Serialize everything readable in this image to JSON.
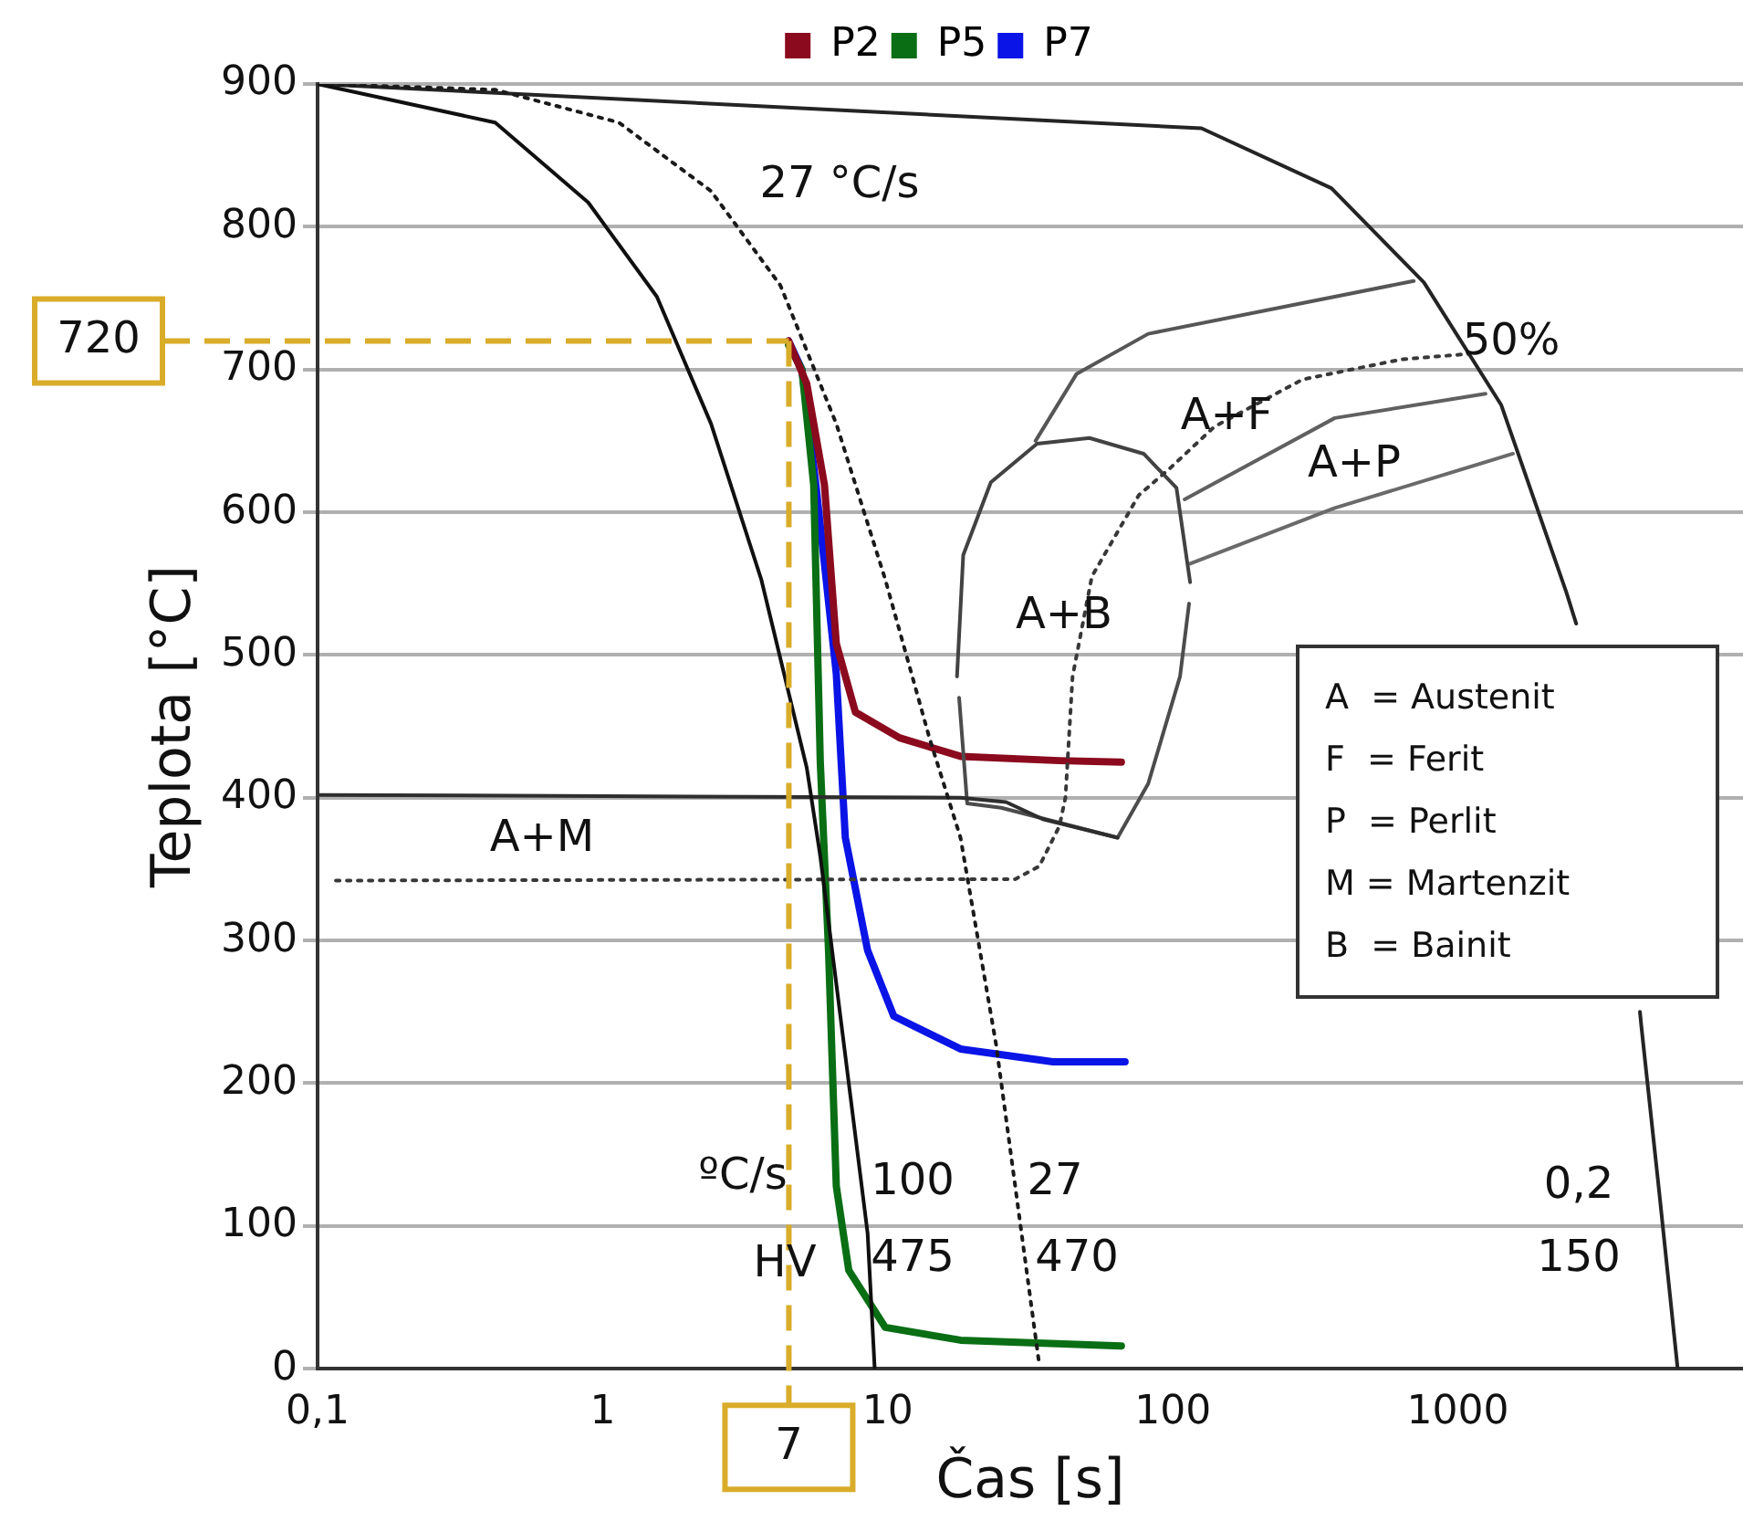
{
  "chart_data": {
    "type": "line",
    "xlabel": "Čas [s]",
    "ylabel": "Teplota [°C]",
    "log": "x",
    "xlim": [
      0.1,
      10000
    ],
    "ylim": [
      0,
      900
    ],
    "xticks": [
      {
        "value": 0.1,
        "label": "0,1"
      },
      1,
      10,
      100,
      1000
    ],
    "yticks": [
      0,
      100,
      200,
      300,
      400,
      500,
      600,
      700,
      800,
      900
    ],
    "grid": "y",
    "legend": "top",
    "marker": "none",
    "series": [
      {
        "color": "#101010",
        "x": [
          0.1,
          0.42,
          0.89,
          1.55,
          2.4,
          3.6,
          5.2,
          5.8,
          8.5,
          9.0
        ],
        "values": [
          900,
          873,
          817,
          751,
          662,
          553,
          421,
          359,
          95,
          0
        ]
      },
      {
        "color": "#1a1a1a",
        "line_style": "dotted",
        "x": [
          0.1,
          0.42,
          1.14,
          2.4,
          4.2,
          6.6,
          9.8,
          14,
          18,
          24,
          34
        ],
        "values": [
          900,
          896,
          873,
          825,
          759,
          662,
          553,
          442,
          372,
          227,
          3
        ]
      },
      {
        "color": "#242424",
        "x": [
          0.1,
          126,
          360,
          760,
          1420,
          2400,
          2600,
          4300,
          4350,
          4400,
          5100,
          5900
        ],
        "values": [
          900,
          869,
          827,
          761,
          675,
          544,
          522,
          null,
          250,
          240,
          121,
          0
        ]
      },
      {
        "color": "#2e2e2e",
        "x": [
          0.1,
          18,
          26,
          35,
          64
        ],
        "values": [
          402,
          400,
          397,
          385,
          372
        ]
      },
      {
        "color": "#383838",
        "line_style": "dotted",
        "x": [
          0.116,
          28,
          34,
          40,
          42,
          44.5,
          52,
          76,
          98,
          140,
          285,
          630,
          1100
        ],
        "values": [
          342,
          343,
          352,
          380,
          400,
          485,
          555,
          612,
          631,
          660,
          693,
          707,
          711
        ]
      },
      {
        "color": "#424242",
        "x": [
          17.5,
          18.4,
          23,
          33.4,
          51,
          79,
          103,
          115
        ],
        "values": [
          485,
          570,
          621,
          648,
          652,
          641,
          617,
          551
        ]
      },
      {
        "color": "#4c4c4c",
        "x": [
          17.8,
          19,
          25,
          64,
          82,
          106,
          114
        ],
        "values": [
          470,
          396,
          393,
          372,
          410,
          485,
          536
        ]
      },
      {
        "color": "#565656",
        "x": [
          33,
          46,
          82,
          700
        ],
        "values": [
          650,
          697,
          725,
          762
        ]
      },
      {
        "color": "#606060",
        "x": [
          110,
          370,
          1250
        ],
        "values": [
          609,
          666,
          683
        ]
      },
      {
        "color": "#6a6a6a",
        "x": [
          115,
          370,
          1560
        ],
        "values": [
          564,
          603,
          641
        ]
      },
      {
        "name": "P2",
        "color": "#8b0a1e",
        "x": [
          4.49,
          5.2,
          6.0,
          6.6,
          7.7,
          11,
          18,
          40,
          66
        ],
        "values": [
          720,
          690,
          619,
          508,
          460,
          442,
          429,
          426,
          425
        ]
      },
      {
        "name": "P5",
        "color": "#0a6e14",
        "x": [
          4.49,
          5.0,
          5.5,
          5.8,
          6.2,
          6.6,
          7.3,
          9.8,
          18,
          66
        ],
        "values": [
          717,
          700,
          619,
          425,
          293,
          128,
          69,
          29,
          20,
          16
        ]
      },
      {
        "name": "P7",
        "color": "#0a14e6",
        "x": [
          4.49,
          5.0,
          5.6,
          6.6,
          7.1,
          8.5,
          10.5,
          18,
          38,
          68
        ],
        "values": [
          720,
          700,
          619,
          487,
          372,
          293,
          247,
          224,
          215,
          215
        ]
      }
    ],
    "ref_lines": [
      {
        "axis": "y",
        "value": 720,
        "label": "720",
        "color": "#d9ac2a",
        "line_style": "dashed"
      },
      {
        "axis": "x",
        "value": 4.5,
        "color": "#d9ac2a",
        "line_style": "dashed"
      }
    ],
    "annotations": [
      "27 °C/s",
      "50%",
      "A+F",
      "A+P",
      "A+B",
      "A+M",
      "ºC/s",
      "100",
      "27",
      "0,2",
      "HV",
      "475",
      "470",
      "150",
      "7",
      "A  = Austenit",
      "F  = Ferit",
      "P  = Perlit",
      "M = Martenzit",
      "B  = Bainit"
    ]
  }
}
